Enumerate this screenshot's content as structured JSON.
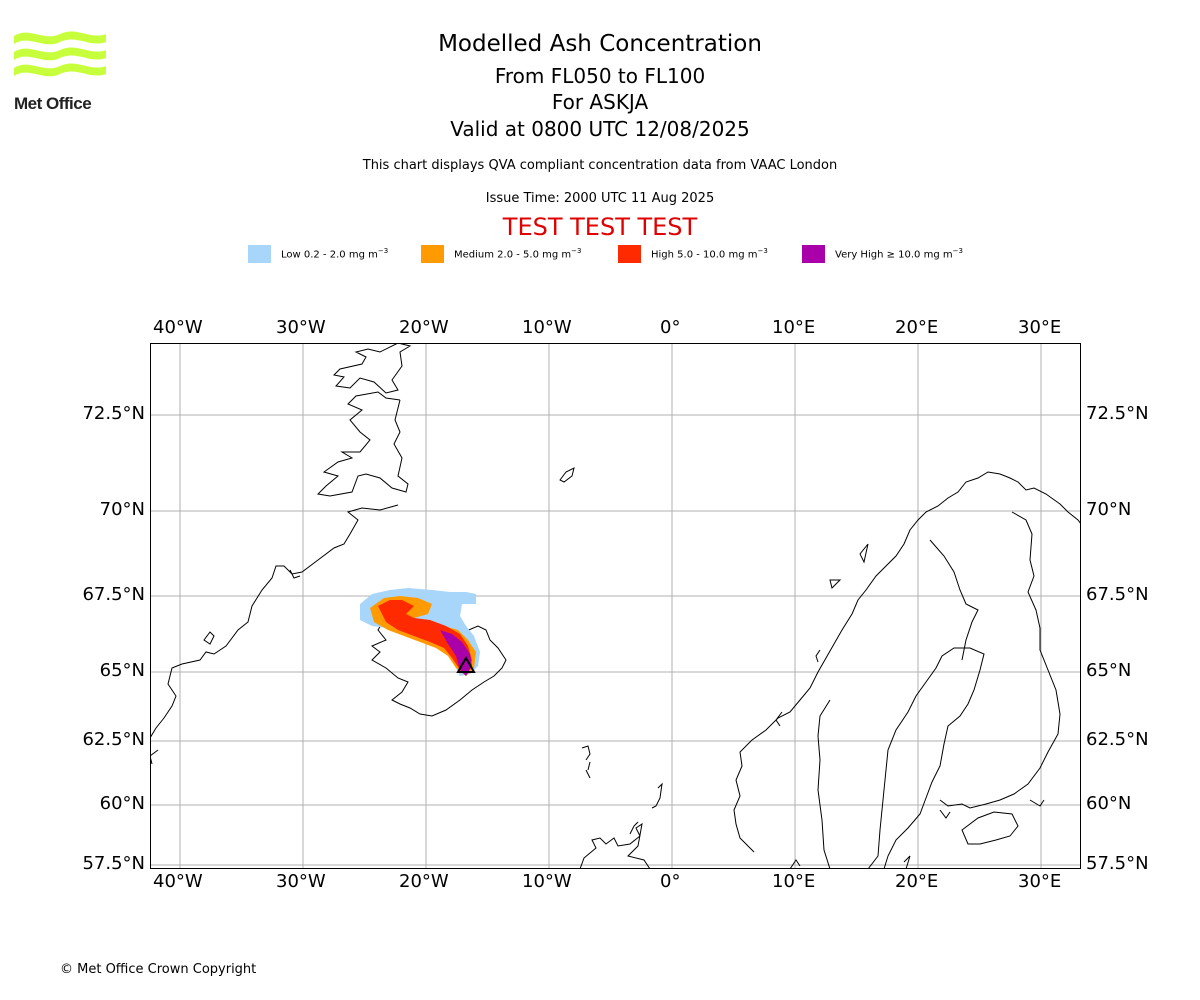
{
  "logo": {
    "text": "Met Office"
  },
  "title": {
    "line1": "Modelled Ash Concentration",
    "line2": "From FL050 to FL100",
    "line3": "For ASKJA",
    "line4": "Valid at 0800 UTC 12/08/2025"
  },
  "subtitle": "This chart displays QVA compliant concentration data from VAAC London",
  "issue_time": "Issue Time: 2000 UTC 11 Aug 2025",
  "test_banner": "TEST TEST TEST",
  "legend": [
    {
      "label": "Low 0.2 - 2.0 mg m",
      "exp": "−3",
      "color": "#a8d5fa"
    },
    {
      "label": "Medium 2.0 - 5.0 mg m",
      "exp": "−3",
      "color": "#ff9a00"
    },
    {
      "label": "High 5.0 - 10.0 mg m",
      "exp": "−3",
      "color": "#ff2a00"
    },
    {
      "label": "Very High ≥ 10.0 mg m",
      "exp": "−3",
      "color": "#aa00aa"
    }
  ],
  "axes": {
    "lon_labels": [
      "40°W",
      "30°W",
      "20°W",
      "10°W",
      "0°",
      "10°E",
      "20°E",
      "30°E"
    ],
    "lat_labels": [
      "72.5°N",
      "70°N",
      "67.5°N",
      "65°N",
      "62.5°N",
      "60°N",
      "57.5°N"
    ]
  },
  "volcano": {
    "name": "ASKJA",
    "symbol": "triangle"
  },
  "copyright": "© Met Office Crown Copyright",
  "colors": {
    "test_banner": "#e00000",
    "logo_green": "#c8ff3c",
    "grid": "#b0b0b0"
  }
}
